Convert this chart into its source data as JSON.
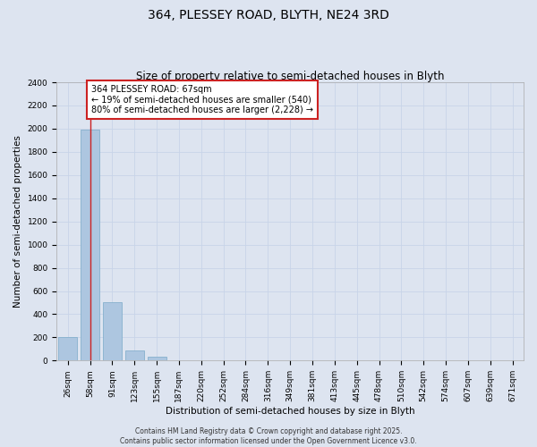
{
  "title_line1": "364, PLESSEY ROAD, BLYTH, NE24 3RD",
  "title_line2": "Size of property relative to semi-detached houses in Blyth",
  "xlabel": "Distribution of semi-detached houses by size in Blyth",
  "ylabel": "Number of semi-detached properties",
  "categories": [
    "26sqm",
    "58sqm",
    "91sqm",
    "123sqm",
    "155sqm",
    "187sqm",
    "220sqm",
    "252sqm",
    "284sqm",
    "316sqm",
    "349sqm",
    "381sqm",
    "413sqm",
    "445sqm",
    "478sqm",
    "510sqm",
    "542sqm",
    "574sqm",
    "607sqm",
    "639sqm",
    "671sqm"
  ],
  "values": [
    200,
    1990,
    500,
    90,
    35,
    0,
    0,
    0,
    0,
    0,
    0,
    0,
    0,
    0,
    0,
    0,
    0,
    0,
    0,
    0,
    0
  ],
  "bar_color": "#adc6e0",
  "bar_edge_color": "#7aaac8",
  "grid_color": "#c8d4e8",
  "background_color": "#dde4f0",
  "vline_x": 1,
  "vline_color": "#cc2222",
  "annotation_text": "364 PLESSEY ROAD: 67sqm\n← 19% of semi-detached houses are smaller (540)\n80% of semi-detached houses are larger (2,228) →",
  "annotation_box_color": "#ffffff",
  "annotation_border_color": "#cc2222",
  "ylim": [
    0,
    2400
  ],
  "yticks": [
    0,
    200,
    400,
    600,
    800,
    1000,
    1200,
    1400,
    1600,
    1800,
    2000,
    2200,
    2400
  ],
  "copyright_text": "Contains HM Land Registry data © Crown copyright and database right 2025.\nContains public sector information licensed under the Open Government Licence v3.0.",
  "title_fontsize": 10,
  "subtitle_fontsize": 8.5,
  "axis_label_fontsize": 7.5,
  "tick_fontsize": 6.5,
  "annotation_fontsize": 7,
  "copyright_fontsize": 5.5,
  "ylabel_fontsize": 7.5
}
